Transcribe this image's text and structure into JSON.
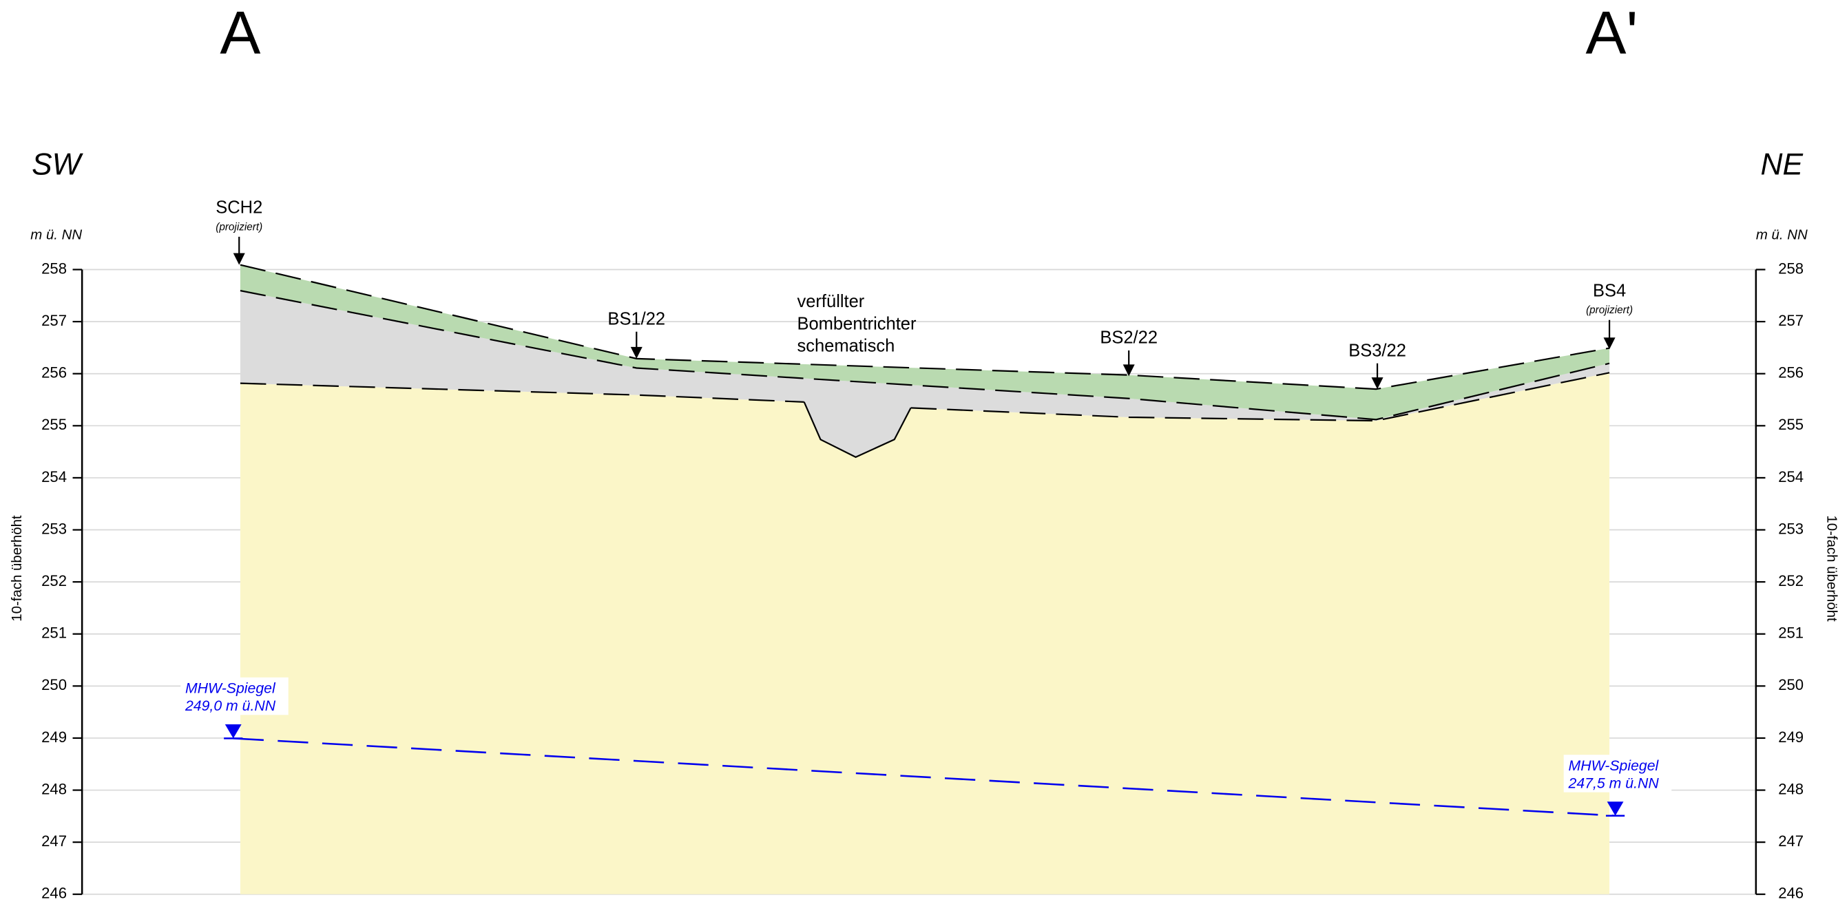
{
  "section": {
    "start": "A",
    "end": "A'",
    "left_direction": "SW",
    "right_direction": "NE"
  },
  "axis": {
    "unit_left": "m ü. NN",
    "unit_right": "m ü. NN",
    "exaggeration_left": "10-fach überhöht",
    "exaggeration_right": "10-fach überhöht",
    "ticks": [
      258,
      257,
      256,
      255,
      254,
      253,
      252,
      251,
      250,
      249,
      248,
      247,
      246
    ]
  },
  "boreholes": [
    {
      "name": "SCH2",
      "note": "(projiziert)"
    },
    {
      "name": "BS1/22"
    },
    {
      "name": "BS2/22"
    },
    {
      "name": "BS3/22"
    },
    {
      "name": "BS4",
      "note": "(projiziert)"
    }
  ],
  "crater_note": [
    "verfüllter",
    "Bombentrichter",
    "schematisch"
  ],
  "water_levels": [
    {
      "label": "MHW-Spiegel",
      "level": "249,0 m ü.NN"
    },
    {
      "label": "MHW-Spiegel",
      "level": "247,5 m ü.NN"
    }
  ]
}
